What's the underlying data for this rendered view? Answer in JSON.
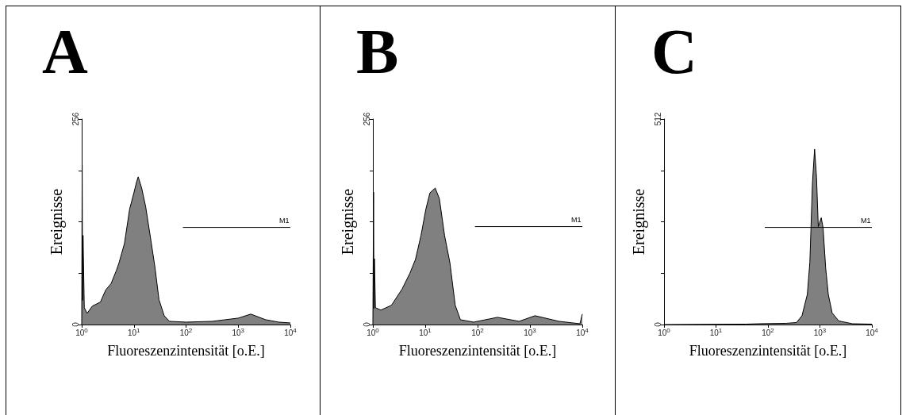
{
  "chart_data": [
    {
      "type": "area",
      "title": "A",
      "xlabel": "Fluoreszenzintensität [o.E.]",
      "ylabel": "Ereignisse",
      "log": "x",
      "xlim": [
        1,
        10000
      ],
      "xticks": [
        {
          "value": 1,
          "label": "10$^{0}$"
        },
        {
          "value": 10,
          "label": "10$^{1}$"
        },
        {
          "value": 100,
          "label": "10$^{2}$"
        },
        {
          "value": 1000,
          "label": "10$^{3}$"
        },
        {
          "value": 10000,
          "label": "10$^{4}$"
        }
      ],
      "ylim": [
        0,
        256
      ],
      "yticks": [
        0,
        {
          "value": 64,
          "label": null
        },
        {
          "value": 128,
          "label": null
        },
        {
          "value": 192,
          "label": null
        },
        256
      ],
      "series": [
        {
          "color": "#808080",
          "x": [
            1,
            1.02,
            1.04,
            1.06,
            1.12,
            1.27,
            1.6,
            2.28,
            2.88,
            3.65,
            4.6,
            5.2,
            6.6,
            8.3,
            10,
            11.2,
            12.1,
            14.1,
            16.8,
            21.3,
            25.4,
            30.3,
            38.1,
            48,
            100,
            318,
            1000,
            1747,
            3360,
            6000,
            10000
          ],
          "values": [
            0,
            199,
            30,
            111,
            21,
            14,
            23,
            28,
            43,
            51,
            67,
            77,
            101,
            144,
            164,
            177,
            184,
            170,
            147,
            104,
            71,
            31,
            11,
            4,
            3,
            4,
            8,
            13,
            6,
            3,
            2
          ]
        },
        {
          "type": "line",
          "name": "M1",
          "color": "#000000",
          "x": [
            87,
            10000
          ],
          "values": [
            121,
            121
          ]
        }
      ]
    },
    {
      "type": "area",
      "title": "B",
      "xlabel": "Fluoreszenzintensität [o.E.]",
      "ylabel": "Ereignisse",
      "log": "x",
      "xlim": [
        1,
        10000
      ],
      "xticks": [
        {
          "value": 1,
          "label": "10$^{0}$"
        },
        {
          "value": 10,
          "label": "10$^{1}$"
        },
        {
          "value": 100,
          "label": "10$^{2}$"
        },
        {
          "value": 1000,
          "label": "10$^{3}$"
        },
        {
          "value": 10000,
          "label": "10$^{4}$"
        }
      ],
      "ylim": [
        0,
        256
      ],
      "yticks": [
        0,
        {
          "value": 64,
          "label": null
        },
        {
          "value": 128,
          "label": null
        },
        {
          "value": 192,
          "label": null
        },
        256
      ],
      "series": [
        {
          "color": "#808080",
          "x": [
            1,
            1.03,
            1.05,
            1.07,
            1.12,
            1.42,
            2.26,
            3.6,
            5.1,
            6.5,
            8.3,
            10.3,
            12.3,
            15.5,
            18.6,
            23.4,
            29.6,
            37.4,
            47,
            84,
            240,
            620,
            1250,
            3580,
            9000,
            10000
          ],
          "values": [
            0,
            165,
            20,
            82,
            21,
            18,
            24,
            44,
            64,
            81,
            111,
            144,
            164,
            170,
            157,
            111,
            77,
            24,
            6,
            3,
            9,
            4,
            11,
            4,
            1,
            13
          ]
        },
        {
          "type": "line",
          "name": "M1",
          "color": "#000000",
          "x": [
            89,
            10000
          ],
          "values": [
            122,
            122
          ]
        }
      ]
    },
    {
      "type": "area",
      "title": "C",
      "xlabel": "Fluoreszenzintensität [o.E.]",
      "ylabel": "Ereignisse",
      "log": "x",
      "xlim": [
        1,
        10000
      ],
      "xticks": [
        {
          "value": 1,
          "label": "10$^{0}$"
        },
        {
          "value": 10,
          "label": "10$^{1}$"
        },
        {
          "value": 100,
          "label": "10$^{2}$"
        },
        {
          "value": 1000,
          "label": "10$^{3}$"
        },
        {
          "value": 10000,
          "label": "10$^{4}$"
        }
      ],
      "ylim": [
        0,
        512
      ],
      "yticks": [
        0,
        {
          "value": 128,
          "label": null
        },
        {
          "value": 256,
          "label": null
        },
        {
          "value": 384,
          "label": null
        },
        512
      ],
      "series": [
        {
          "color": "#808080",
          "x": [
            1,
            38,
            68,
            222,
            354,
            452,
            572,
            640,
            719,
            790,
            860,
            930,
            1060,
            1150,
            1290,
            1450,
            1720,
            2300,
            4200,
            10000
          ],
          "values": [
            0,
            1,
            2,
            3,
            5,
            22,
            75,
            155,
            354,
            437,
            367,
            244,
            266,
            241,
            141,
            75,
            29,
            9,
            2,
            1
          ]
        },
        {
          "type": "line",
          "name": "M1",
          "color": "#000000",
          "x": [
            87,
            10000
          ],
          "values": [
            242,
            242
          ]
        }
      ]
    }
  ]
}
